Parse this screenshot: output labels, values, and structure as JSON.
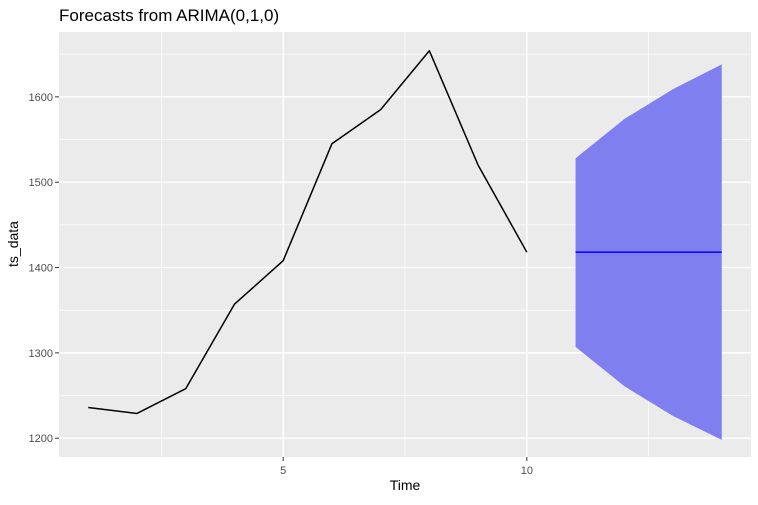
{
  "chart_data": {
    "type": "line",
    "title": "Forecasts from ARIMA(0,1,0)",
    "xlabel": "Time",
    "ylabel": "ts_data",
    "xlim": [
      0.4,
      14.6
    ],
    "ylim": [
      1178,
      1676
    ],
    "x_ticks": [
      5,
      10
    ],
    "y_ticks": [
      1200,
      1300,
      1400,
      1500,
      1600
    ],
    "grid": true,
    "legend": "none",
    "series": [
      {
        "x": [
          1,
          2,
          3,
          4,
          5,
          6,
          7,
          8,
          9,
          10
        ],
        "values": [
          1236,
          1229,
          1258,
          1357,
          1408,
          1545,
          1585,
          1654,
          1520,
          1418
        ]
      }
    ],
    "forecast": {
      "x": [
        11,
        12,
        13,
        14
      ],
      "mean": [
        1418,
        1418,
        1418,
        1418
      ],
      "lower": [
        1307,
        1261,
        1226,
        1198
      ],
      "upper": [
        1528,
        1574,
        1609,
        1638
      ]
    },
    "colors": {
      "panel": "#ebebeb",
      "grid": "#ffffff",
      "line": "#000000",
      "forecast_mean": "#0000ff",
      "interval": "#7f7ff0",
      "axis_text": "#4d4d4d"
    }
  }
}
